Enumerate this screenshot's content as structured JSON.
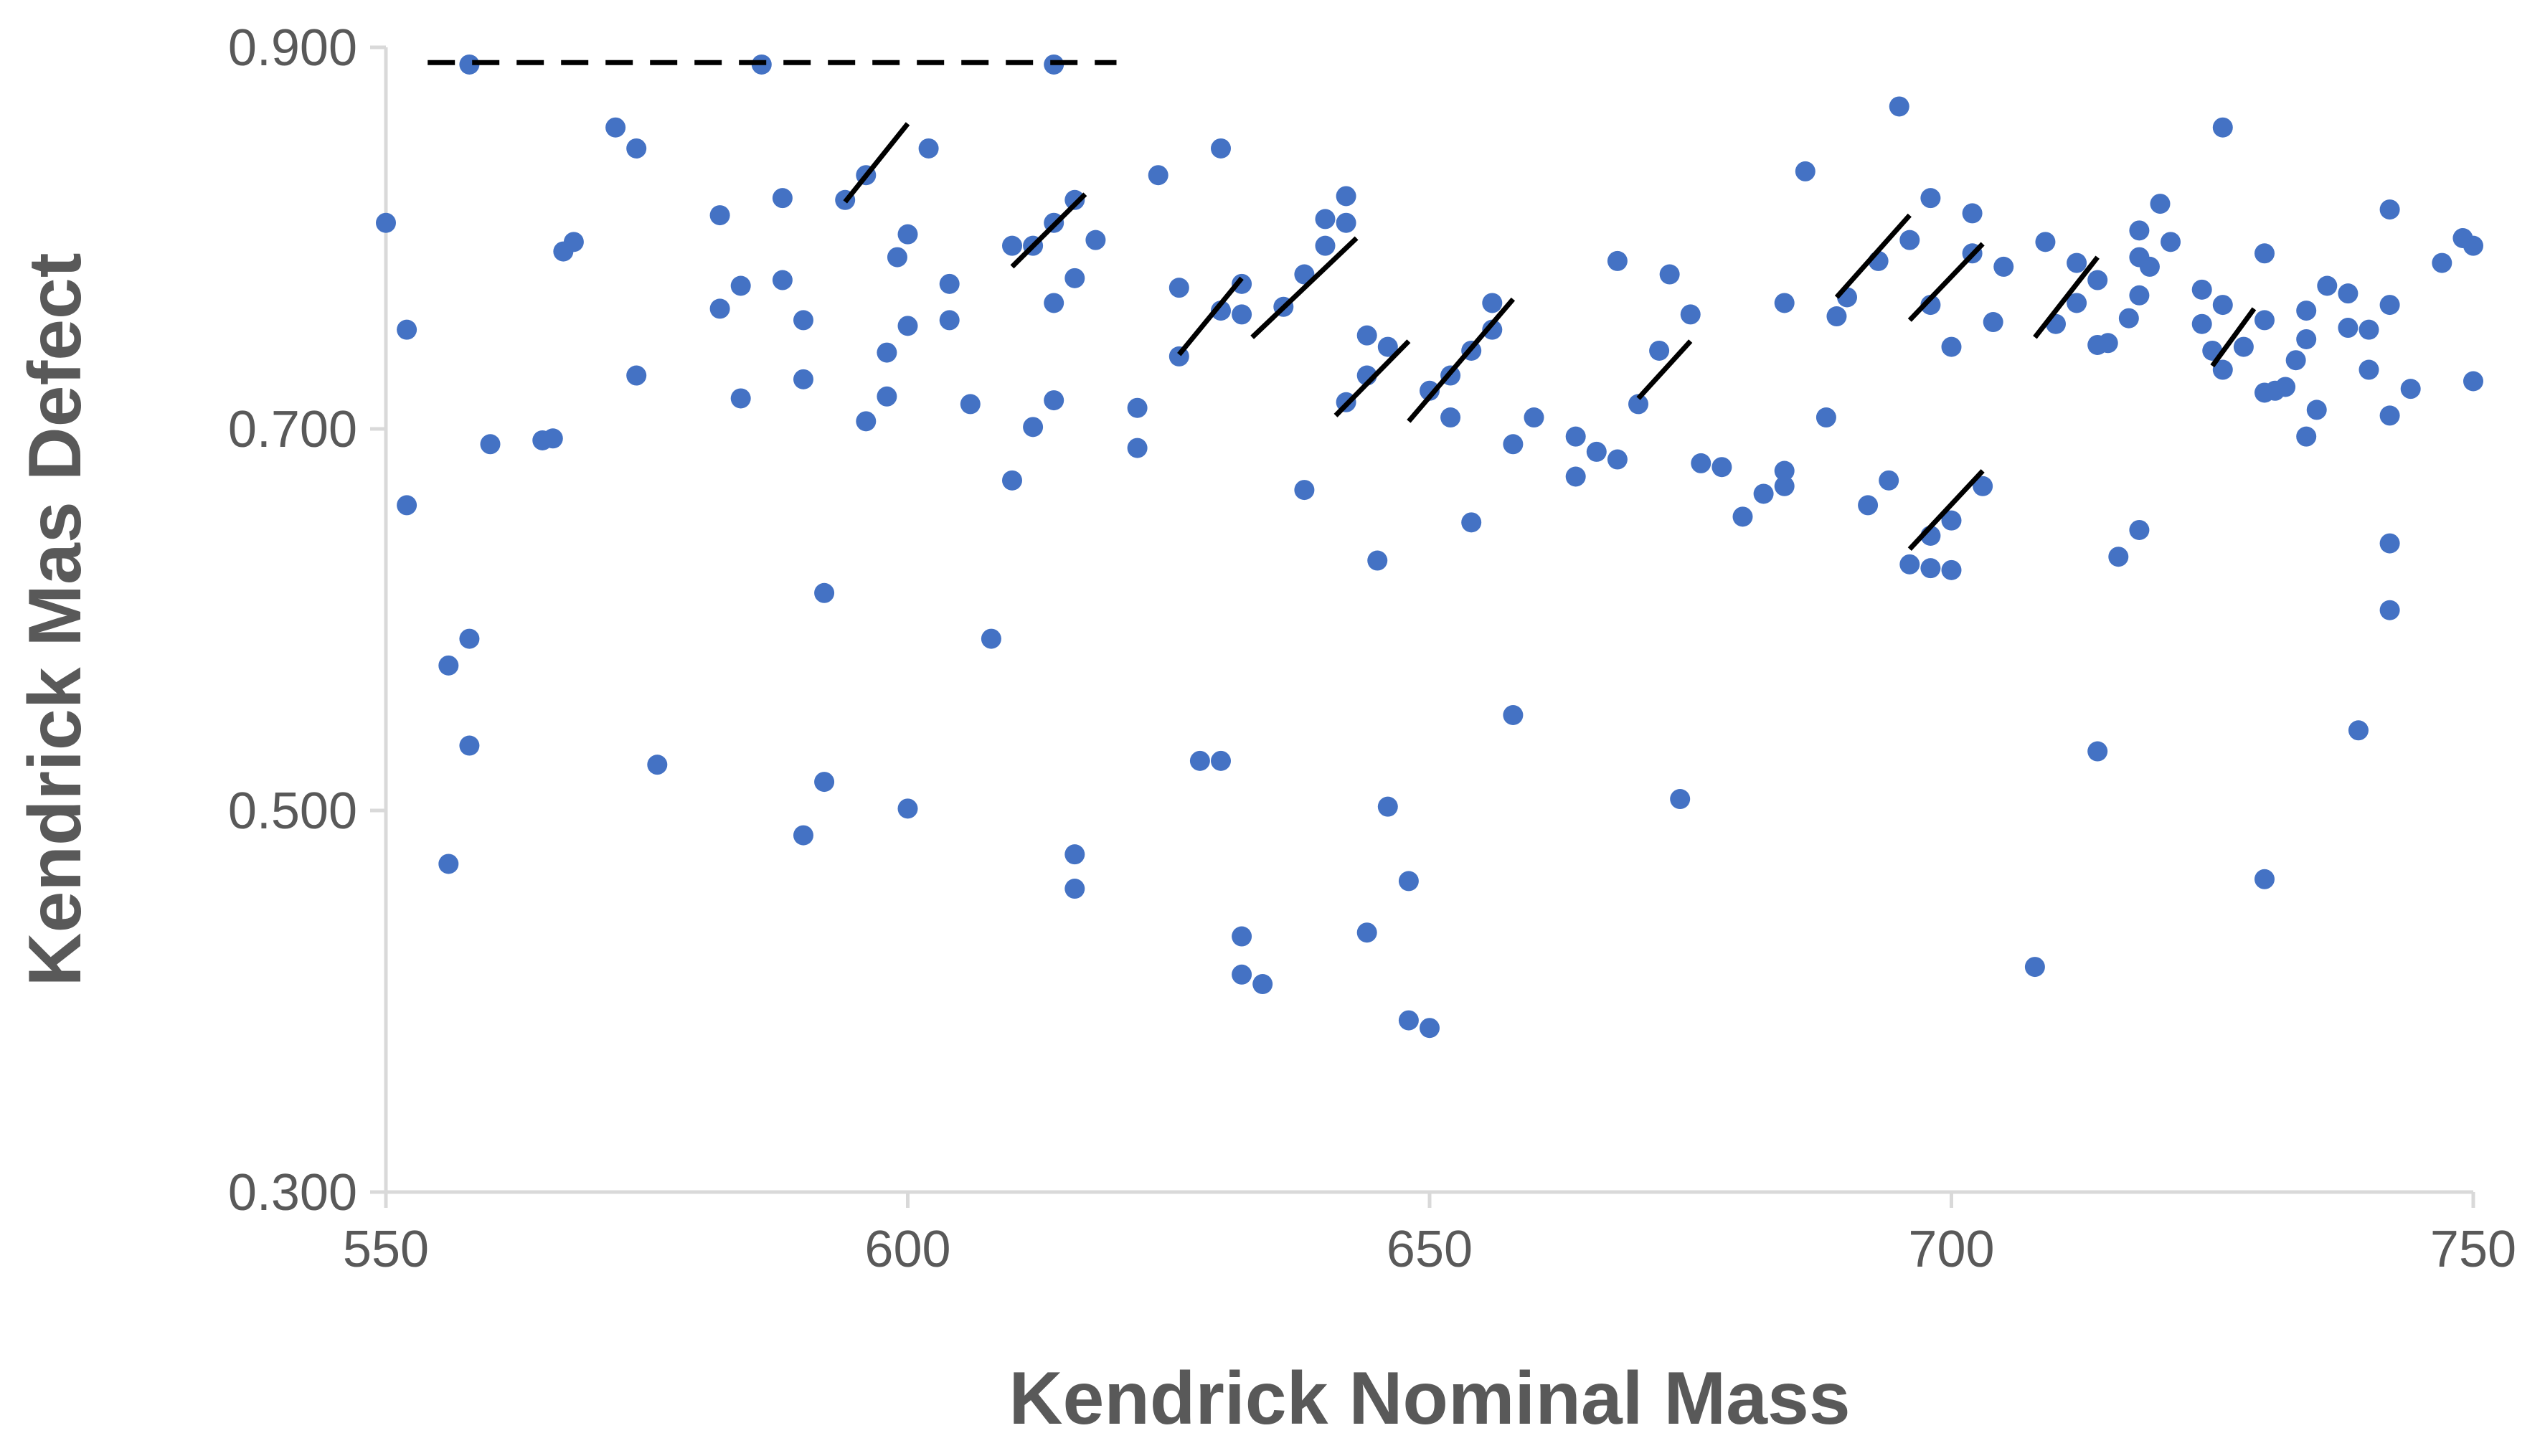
{
  "chart_data": {
    "type": "scatter",
    "title": "",
    "xlabel": "Kendrick Nominal Mass",
    "ylabel": "Kendrick Mas Defect",
    "xlim": [
      550,
      750
    ],
    "ylim": [
      0.3,
      0.9
    ],
    "xticks": [
      "550",
      "600",
      "650",
      "700",
      "750"
    ],
    "yticks": [
      "0.300",
      "0.500",
      "0.700",
      "0.900"
    ],
    "grid": false,
    "legend": "none",
    "point_color": "#4472c4",
    "line_color": "#000000",
    "points": [
      [
        550,
        0.808
      ],
      [
        552,
        0.752
      ],
      [
        552,
        0.66
      ],
      [
        556,
        0.576
      ],
      [
        556,
        0.472
      ],
      [
        558,
        0.891
      ],
      [
        558,
        0.59
      ],
      [
        558,
        0.534
      ],
      [
        560,
        0.692
      ],
      [
        565,
        0.694
      ],
      [
        566,
        0.695
      ],
      [
        567,
        0.793
      ],
      [
        568,
        0.798
      ],
      [
        572,
        0.858
      ],
      [
        574,
        0.847
      ],
      [
        574,
        0.728
      ],
      [
        576,
        0.524
      ],
      [
        582,
        0.812
      ],
      [
        582,
        0.763
      ],
      [
        584,
        0.775
      ],
      [
        584,
        0.716
      ],
      [
        586,
        0.891
      ],
      [
        588,
        0.821
      ],
      [
        588,
        0.778
      ],
      [
        590,
        0.757
      ],
      [
        590,
        0.726
      ],
      [
        590,
        0.487
      ],
      [
        592,
        0.614
      ],
      [
        592,
        0.515
      ],
      [
        594,
        0.82
      ],
      [
        596,
        0.833
      ],
      [
        596,
        0.704
      ],
      [
        598,
        0.74
      ],
      [
        598,
        0.717
      ],
      [
        599,
        0.79
      ],
      [
        600,
        0.802
      ],
      [
        600,
        0.754
      ],
      [
        600,
        0.501
      ],
      [
        602,
        0.847
      ],
      [
        604,
        0.776
      ],
      [
        604,
        0.757
      ],
      [
        606,
        0.713
      ],
      [
        608,
        0.59
      ],
      [
        610,
        0.796
      ],
      [
        610,
        0.673
      ],
      [
        612,
        0.796
      ],
      [
        612,
        0.701
      ],
      [
        614,
        0.891
      ],
      [
        614,
        0.808
      ],
      [
        614,
        0.766
      ],
      [
        614,
        0.715
      ],
      [
        616,
        0.82
      ],
      [
        616,
        0.779
      ],
      [
        616,
        0.477
      ],
      [
        616,
        0.459
      ],
      [
        618,
        0.799
      ],
      [
        622,
        0.711
      ],
      [
        622,
        0.69
      ],
      [
        624,
        0.833
      ],
      [
        626,
        0.774
      ],
      [
        626,
        0.738
      ],
      [
        628,
        0.526
      ],
      [
        630,
        0.847
      ],
      [
        630,
        0.762
      ],
      [
        630,
        0.526
      ],
      [
        632,
        0.776
      ],
      [
        632,
        0.76
      ],
      [
        632,
        0.434
      ],
      [
        632,
        0.414
      ],
      [
        634,
        0.409
      ],
      [
        636,
        0.764
      ],
      [
        638,
        0.781
      ],
      [
        638,
        0.668
      ],
      [
        640,
        0.81
      ],
      [
        640,
        0.796
      ],
      [
        642,
        0.822
      ],
      [
        642,
        0.808
      ],
      [
        642,
        0.714
      ],
      [
        644,
        0.749
      ],
      [
        644,
        0.728
      ],
      [
        644,
        0.436
      ],
      [
        645,
        0.631
      ],
      [
        646,
        0.743
      ],
      [
        646,
        0.502
      ],
      [
        648,
        0.463
      ],
      [
        648,
        0.39
      ],
      [
        650,
        0.386
      ],
      [
        650,
        0.72
      ],
      [
        652,
        0.728
      ],
      [
        652,
        0.706
      ],
      [
        654,
        0.741
      ],
      [
        654,
        0.651
      ],
      [
        656,
        0.766
      ],
      [
        656,
        0.752
      ],
      [
        658,
        0.692
      ],
      [
        658,
        0.55
      ],
      [
        660,
        0.706
      ],
      [
        664,
        0.696
      ],
      [
        664,
        0.675
      ],
      [
        666,
        0.688
      ],
      [
        668,
        0.788
      ],
      [
        668,
        0.684
      ],
      [
        670,
        0.713
      ],
      [
        672,
        0.741
      ],
      [
        673,
        0.781
      ],
      [
        674,
        0.506
      ],
      [
        675,
        0.76
      ],
      [
        676,
        0.682
      ],
      [
        678,
        0.68
      ],
      [
        680,
        0.654
      ],
      [
        682,
        0.666
      ],
      [
        684,
        0.766
      ],
      [
        684,
        0.678
      ],
      [
        684,
        0.67
      ],
      [
        686,
        0.835
      ],
      [
        688,
        0.706
      ],
      [
        689,
        0.759
      ],
      [
        690,
        0.769
      ],
      [
        692,
        0.66
      ],
      [
        693,
        0.788
      ],
      [
        694,
        0.673
      ],
      [
        695,
        0.869
      ],
      [
        696,
        0.799
      ],
      [
        696,
        0.629
      ],
      [
        698,
        0.821
      ],
      [
        698,
        0.765
      ],
      [
        698,
        0.644
      ],
      [
        698,
        0.627
      ],
      [
        700,
        0.743
      ],
      [
        700,
        0.652
      ],
      [
        700,
        0.626
      ],
      [
        702,
        0.813
      ],
      [
        702,
        0.792
      ],
      [
        703,
        0.67
      ],
      [
        704,
        0.756
      ],
      [
        705,
        0.785
      ],
      [
        708,
        0.418
      ],
      [
        709,
        0.798
      ],
      [
        710,
        0.755
      ],
      [
        712,
        0.787
      ],
      [
        712,
        0.766
      ],
      [
        714,
        0.778
      ],
      [
        714,
        0.744
      ],
      [
        714,
        0.531
      ],
      [
        715,
        0.745
      ],
      [
        716,
        0.633
      ],
      [
        717,
        0.758
      ],
      [
        718,
        0.804
      ],
      [
        718,
        0.79
      ],
      [
        718,
        0.77
      ],
      [
        718,
        0.647
      ],
      [
        719,
        0.785
      ],
      [
        720,
        0.818
      ],
      [
        721,
        0.798
      ],
      [
        724,
        0.773
      ],
      [
        724,
        0.755
      ],
      [
        725,
        0.741
      ],
      [
        726,
        0.858
      ],
      [
        726,
        0.765
      ],
      [
        726,
        0.731
      ],
      [
        728,
        0.743
      ],
      [
        730,
        0.792
      ],
      [
        730,
        0.757
      ],
      [
        730,
        0.719
      ],
      [
        730,
        0.464
      ],
      [
        731,
        0.72
      ],
      [
        732,
        0.722
      ],
      [
        733,
        0.736
      ],
      [
        734,
        0.762
      ],
      [
        734,
        0.747
      ],
      [
        734,
        0.696
      ],
      [
        735,
        0.71
      ],
      [
        736,
        0.775
      ],
      [
        738,
        0.771
      ],
      [
        738,
        0.753
      ],
      [
        739,
        0.542
      ],
      [
        740,
        0.752
      ],
      [
        740,
        0.731
      ],
      [
        742,
        0.815
      ],
      [
        742,
        0.765
      ],
      [
        742,
        0.707
      ],
      [
        742,
        0.64
      ],
      [
        742,
        0.605
      ],
      [
        744,
        0.721
      ],
      [
        747,
        0.787
      ],
      [
        749,
        0.8
      ],
      [
        750,
        0.796
      ],
      [
        750,
        0.725
      ]
    ],
    "lines": [
      {
        "style": "dashed",
        "x": [
          554,
          620
        ],
        "y": [
          0.892,
          0.892
        ]
      },
      {
        "style": "solid",
        "x": [
          594,
          600
        ],
        "y": [
          0.819,
          0.86
        ]
      },
      {
        "style": "solid",
        "x": [
          610,
          617
        ],
        "y": [
          0.785,
          0.823
        ]
      },
      {
        "style": "solid",
        "x": [
          626,
          632
        ],
        "y": [
          0.739,
          0.779
        ]
      },
      {
        "style": "solid",
        "x": [
          633,
          643
        ],
        "y": [
          0.748,
          0.8
        ]
      },
      {
        "style": "solid",
        "x": [
          641,
          648
        ],
        "y": [
          0.707,
          0.746
        ]
      },
      {
        "style": "solid",
        "x": [
          648,
          658
        ],
        "y": [
          0.704,
          0.768
        ]
      },
      {
        "style": "solid",
        "x": [
          670,
          675
        ],
        "y": [
          0.716,
          0.746
        ]
      },
      {
        "style": "solid",
        "x": [
          689,
          696
        ],
        "y": [
          0.769,
          0.812
        ]
      },
      {
        "style": "solid",
        "x": [
          696,
          703
        ],
        "y": [
          0.757,
          0.797
        ]
      },
      {
        "style": "solid",
        "x": [
          696,
          703
        ],
        "y": [
          0.637,
          0.678
        ]
      },
      {
        "style": "solid",
        "x": [
          708,
          714
        ],
        "y": [
          0.748,
          0.79
        ]
      },
      {
        "style": "solid",
        "x": [
          725,
          729
        ],
        "y": [
          0.733,
          0.763
        ]
      }
    ]
  }
}
